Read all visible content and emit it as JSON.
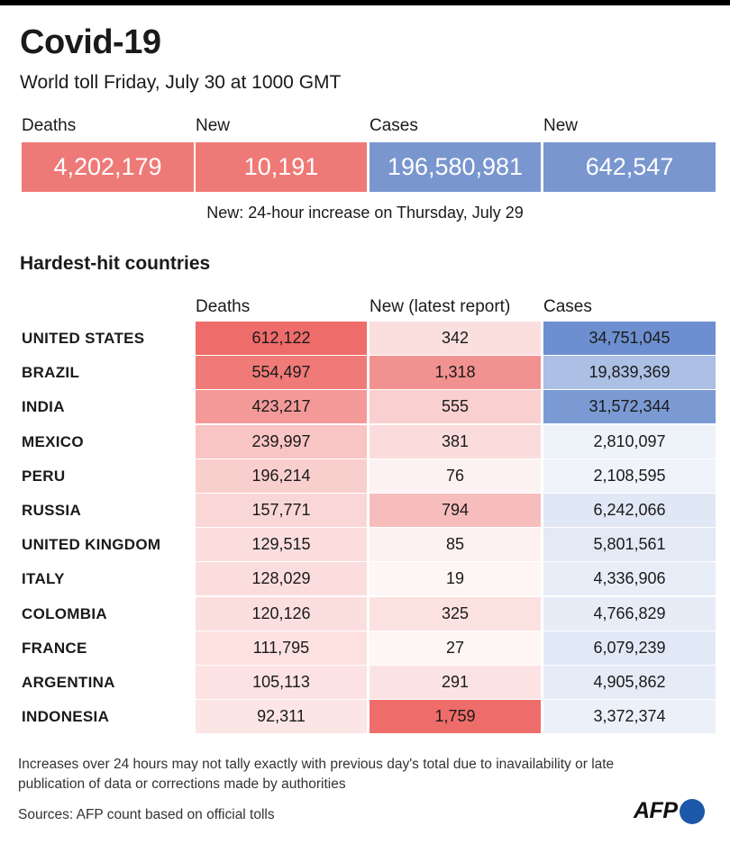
{
  "header": {
    "title": "Covid-19",
    "subtitle": "World toll Friday, July 30 at 1000 GMT"
  },
  "stats": [
    {
      "label": "Deaths",
      "value": "4,202,179",
      "color": "#ee7a78"
    },
    {
      "label": "New",
      "value": "10,191",
      "color": "#ee7a78"
    },
    {
      "label": "Cases",
      "value": "196,580,981",
      "color": "#7a96cf"
    },
    {
      "label": "New",
      "value": "642,547",
      "color": "#7a96cf"
    }
  ],
  "stats_note": "New: 24-hour increase on Thursday, July 29",
  "section_title": "Hardest-hit countries",
  "chart_data": {
    "type": "table",
    "columns": [
      "Deaths",
      "New (latest report)",
      "Cases"
    ],
    "rows": [
      {
        "country": "UNITED STATES",
        "deaths": 612122,
        "new": 342,
        "cases": 34751045,
        "deaths_label": "612,122",
        "new_label": "342",
        "cases_label": "34,751,045"
      },
      {
        "country": "BRAZIL",
        "deaths": 554497,
        "new": 1318,
        "cases": 19839369,
        "deaths_label": "554,497",
        "new_label": "1,318",
        "cases_label": "19,839,369"
      },
      {
        "country": "INDIA",
        "deaths": 423217,
        "new": 555,
        "cases": 31572344,
        "deaths_label": "423,217",
        "new_label": "555",
        "cases_label": "31,572,344"
      },
      {
        "country": "MEXICO",
        "deaths": 239997,
        "new": 381,
        "cases": 2810097,
        "deaths_label": "239,997",
        "new_label": "381",
        "cases_label": "2,810,097"
      },
      {
        "country": "PERU",
        "deaths": 196214,
        "new": 76,
        "cases": 2108595,
        "deaths_label": "196,214",
        "new_label": "76",
        "cases_label": "2,108,595"
      },
      {
        "country": "RUSSIA",
        "deaths": 157771,
        "new": 794,
        "cases": 6242066,
        "deaths_label": "157,771",
        "new_label": "794",
        "cases_label": "6,242,066"
      },
      {
        "country": "UNITED KINGDOM",
        "deaths": 129515,
        "new": 85,
        "cases": 5801561,
        "deaths_label": "129,515",
        "new_label": "85",
        "cases_label": "5,801,561"
      },
      {
        "country": "ITALY",
        "deaths": 128029,
        "new": 19,
        "cases": 4336906,
        "deaths_label": "128,029",
        "new_label": "19",
        "cases_label": "4,336,906"
      },
      {
        "country": "COLOMBIA",
        "deaths": 120126,
        "new": 325,
        "cases": 4766829,
        "deaths_label": "120,126",
        "new_label": "325",
        "cases_label": "4,766,829"
      },
      {
        "country": "FRANCE",
        "deaths": 111795,
        "new": 27,
        "cases": 6079239,
        "deaths_label": "111,795",
        "new_label": "27",
        "cases_label": "6,079,239"
      },
      {
        "country": "ARGENTINA",
        "deaths": 105113,
        "new": 291,
        "cases": 4905862,
        "deaths_label": "105,113",
        "new_label": "291",
        "cases_label": "4,905,862"
      },
      {
        "country": "INDONESIA",
        "deaths": 92311,
        "new": 1759,
        "cases": 3372374,
        "deaths_label": "92,311",
        "new_label": "1,759",
        "cases_label": "3,372,374"
      }
    ],
    "heat_colors": {
      "red": "#ee6c6a",
      "blue": "#6d8fd0"
    }
  },
  "footnote": "Increases over 24 hours may not tally exactly with previous day's total due to inavailability or late publication of data or corrections made by authorities",
  "sources": "Sources: AFP count based on official tolls",
  "logo": "AFP"
}
